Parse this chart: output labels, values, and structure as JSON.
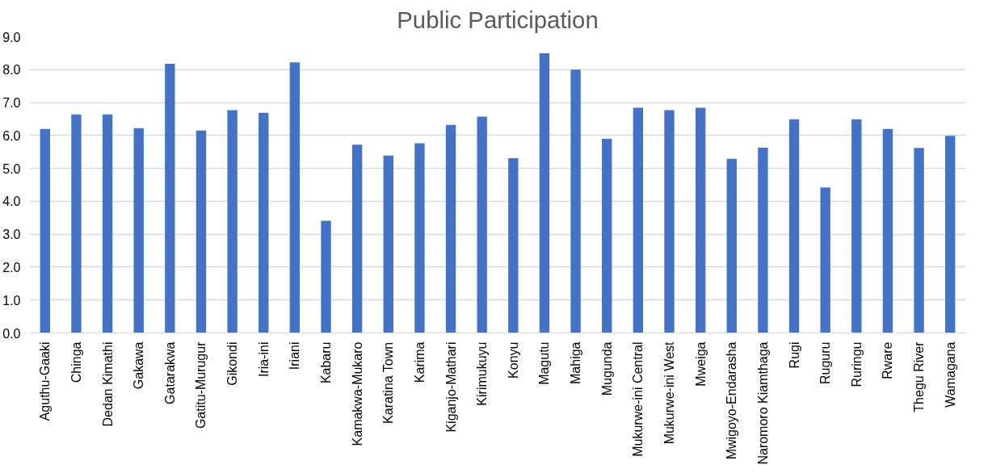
{
  "chart_data": {
    "type": "bar",
    "title": "Public Participation",
    "categories": [
      "Aguthu-Gaaki",
      "Chinga",
      "Dedan Kimathi",
      "Gakawa",
      "Gatarakwa",
      "Gatitu-Murugur",
      "Gikondi",
      "Iria-ini",
      "Iriani",
      "Kabaru",
      "Kamakwa-Mukaro",
      "Karatina Town",
      "Karima",
      "Kiganjo-Mathari",
      "Kirimukuyu",
      "Konyu",
      "Magutu",
      "Mahiga",
      "Mugunda",
      "Mukurwe-ini Central",
      "Mukurwe-ini West",
      "Mweiga",
      "Mwigoyo-Endarasha",
      "Naromoro Kiamthaga",
      "Rugi",
      "Ruguru",
      "Ruringu",
      "Rware",
      "Thegu River",
      "Wamagana"
    ],
    "values": [
      6.2,
      6.64,
      6.64,
      6.22,
      8.18,
      6.15,
      6.77,
      6.69,
      8.22,
      3.41,
      5.72,
      5.39,
      5.76,
      6.32,
      6.57,
      5.31,
      8.5,
      8.0,
      5.9,
      6.84,
      6.77,
      6.84,
      5.29,
      5.63,
      6.49,
      4.42,
      6.49,
      6.2,
      5.62,
      5.99
    ],
    "color": "#4472c4",
    "ylim": [
      0,
      9
    ],
    "yticks": [
      {
        "value": 0,
        "label": "0.0"
      },
      {
        "value": 1,
        "label": "1.0"
      },
      {
        "value": 2,
        "label": "2.0"
      },
      {
        "value": 3,
        "label": "3.0"
      },
      {
        "value": 4,
        "label": "4.0"
      },
      {
        "value": 5,
        "label": "5.0"
      },
      {
        "value": 6,
        "label": "6.0"
      },
      {
        "value": 7,
        "label": "7.0"
      },
      {
        "value": 8,
        "label": "8.0"
      },
      {
        "value": 9,
        "label": "9.0"
      }
    ],
    "grid": "y"
  }
}
